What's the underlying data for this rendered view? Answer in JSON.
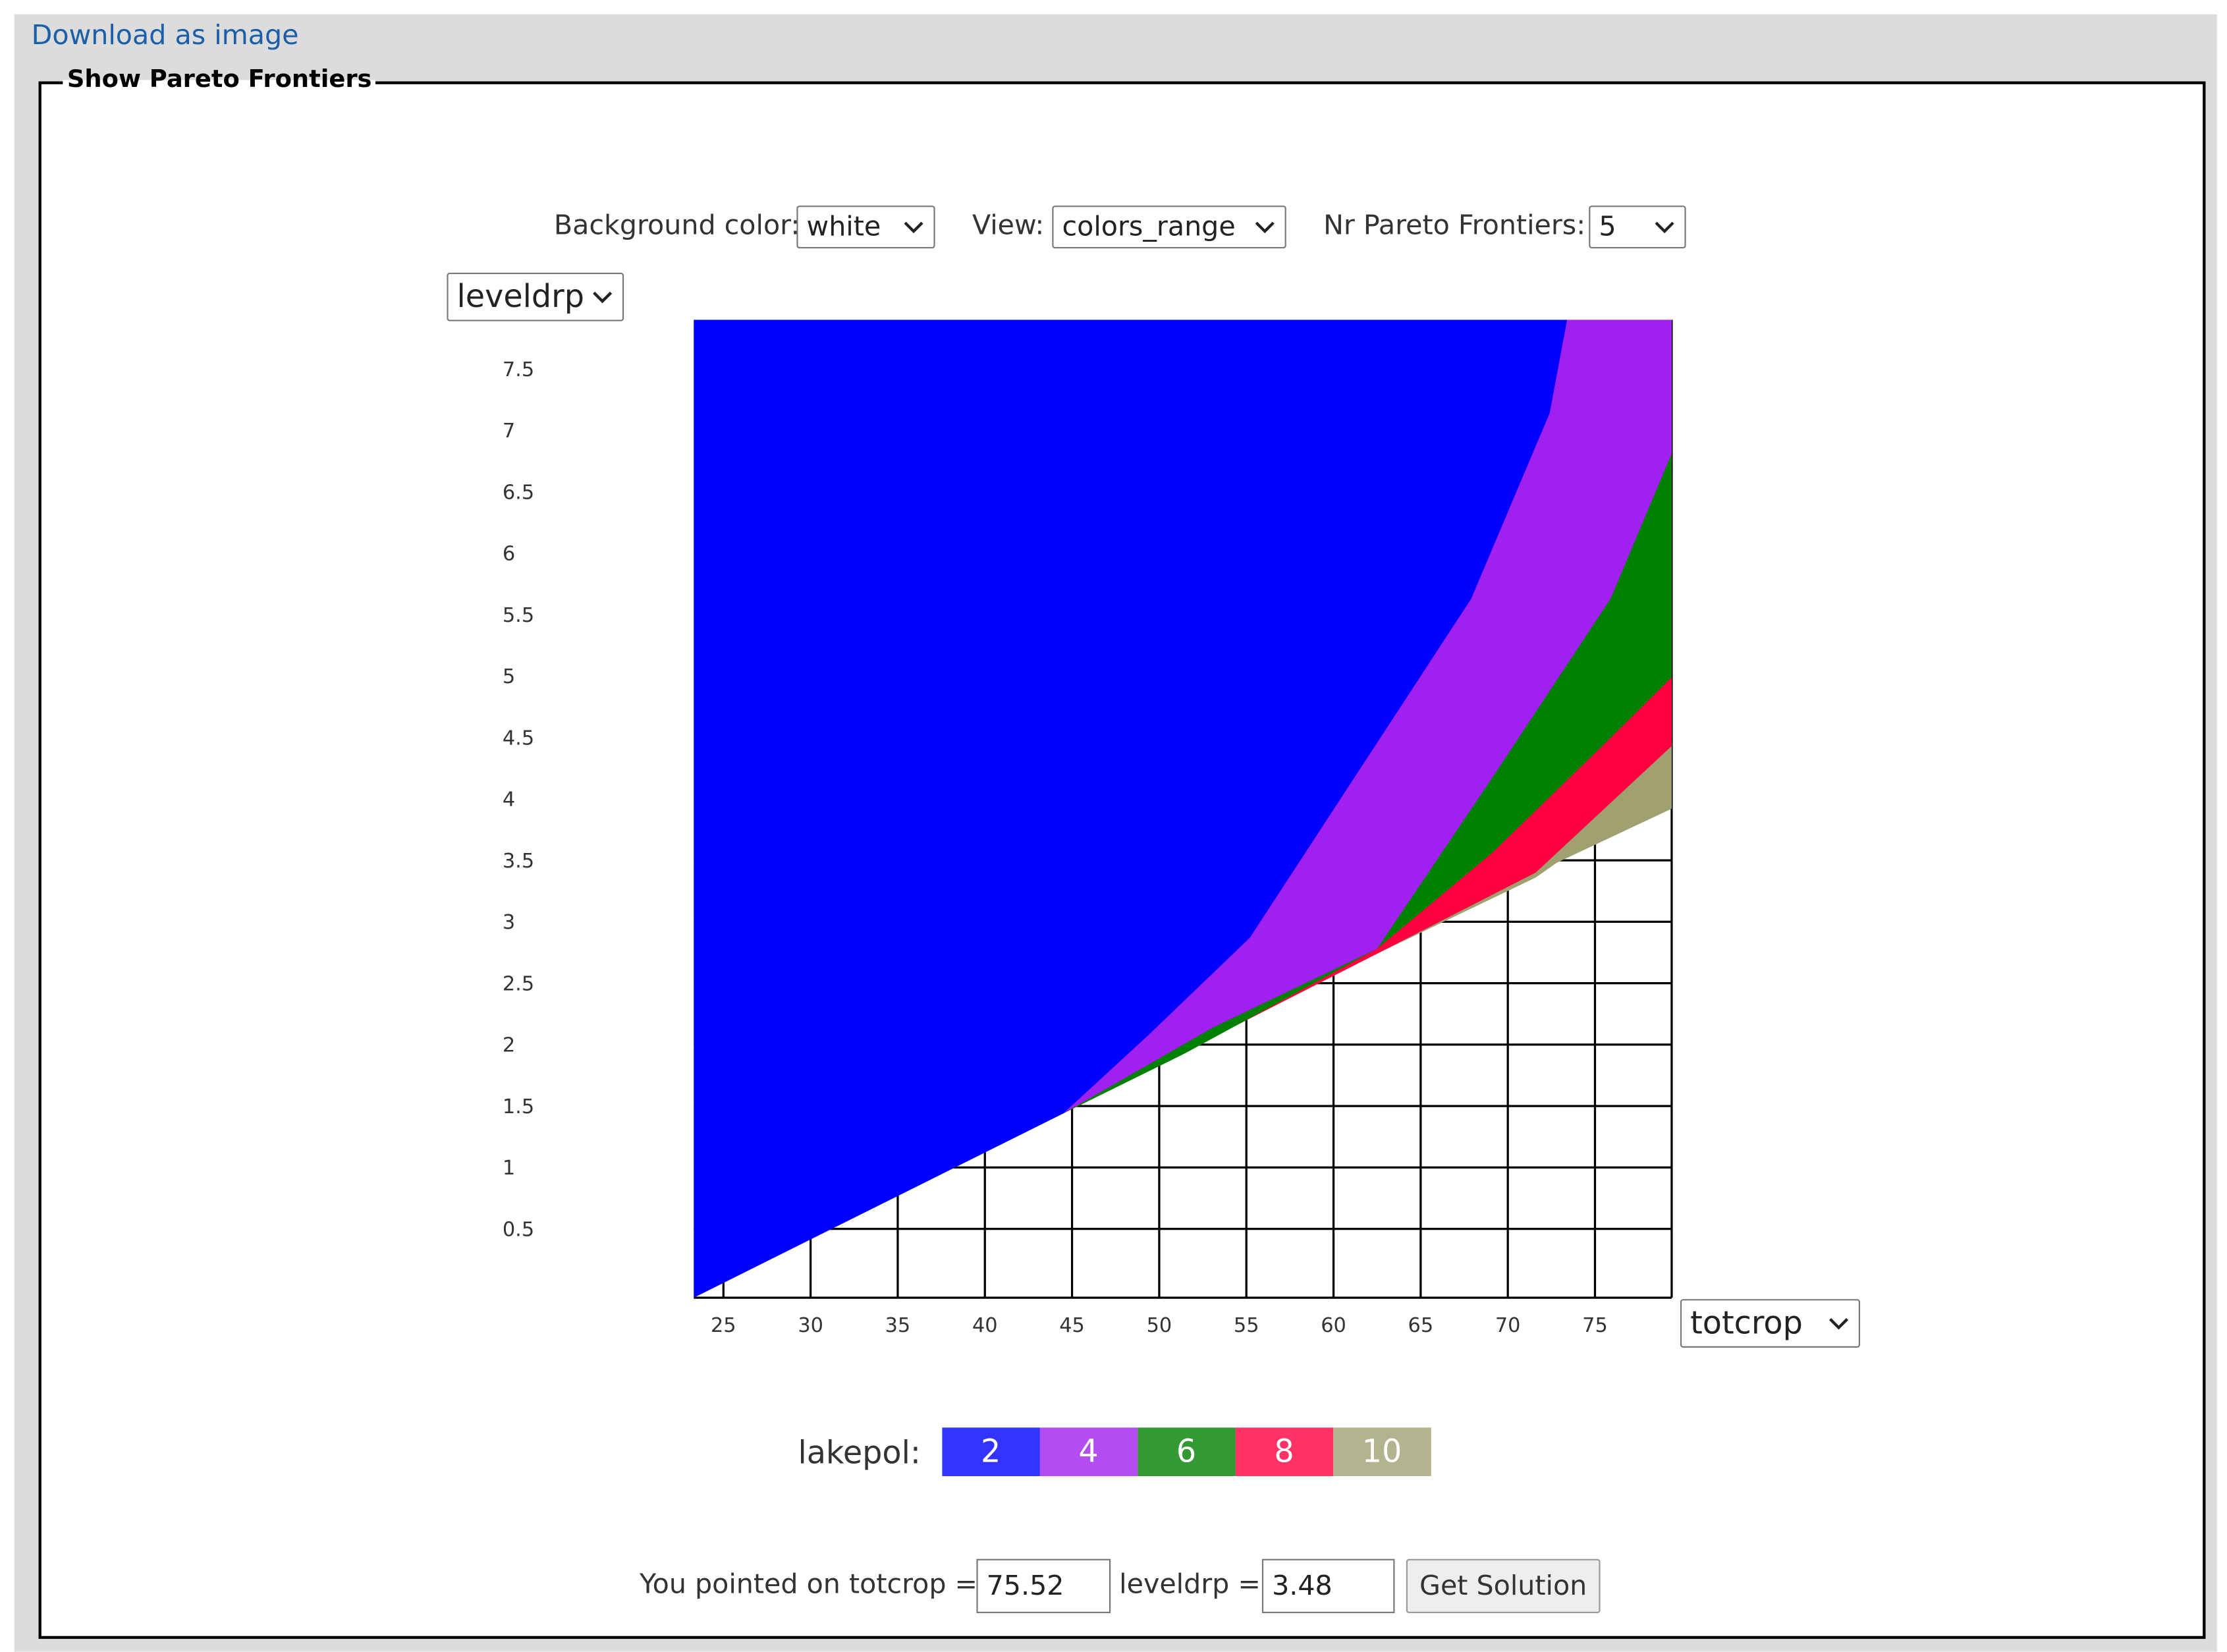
{
  "link": "Download as image",
  "panel_title": "Show Pareto Frontiers",
  "controls": {
    "background_label": "Background color:",
    "background_value": "white",
    "view_label": "View:",
    "view_value": "colors_range",
    "frontiers_label": "Nr Pareto Frontiers:",
    "frontiers_value": "5",
    "y_select": "leveldrp",
    "x_select": "totcrop"
  },
  "chart_data": {
    "type": "area",
    "xlim": [
      23.3,
      79.4
    ],
    "ylim": [
      -0.06,
      7.9
    ],
    "xticks": [
      25,
      30,
      35,
      40,
      45,
      50,
      55,
      60,
      65,
      70,
      75
    ],
    "yticks": [
      0.5,
      1,
      1.5,
      2,
      2.5,
      3,
      3.5,
      4,
      4.5,
      5,
      5.5,
      6,
      6.5,
      7,
      7.5
    ],
    "grid": true,
    "legend_title": "lakepol:",
    "series": [
      {
        "name": "2",
        "color": "#0000ff",
        "x": [
          23.3,
          44.5,
          49.4,
          55.2,
          67.9,
          72.4,
          73.4
        ],
        "values": [
          -0.06,
          1.44,
          2.08,
          2.87,
          5.63,
          7.14,
          7.9
        ]
      },
      {
        "name": "4",
        "color": "#a020f0",
        "x": [
          44.5,
          53.1,
          62.5,
          69.1,
          75.9,
          79.4
        ],
        "values": [
          1.44,
          2.14,
          2.78,
          4.17,
          5.63,
          6.81
        ]
      },
      {
        "name": "6",
        "color": "#008000",
        "x": [
          44.5,
          51.5,
          62.5,
          69.1,
          75.7,
          79.4
        ],
        "values": [
          1.44,
          1.93,
          2.78,
          3.56,
          4.47,
          4.99
        ]
      },
      {
        "name": "8",
        "color": "#ff0040",
        "x": [
          44.5,
          62.5,
          71.6,
          79.4
        ],
        "values": [
          1.44,
          2.74,
          3.4,
          4.43
        ]
      },
      {
        "name": "10",
        "color": "#a0a070",
        "x": [
          23.3,
          44.5,
          62.5,
          71.6,
          72.8,
          79.4
        ],
        "values": [
          -0.06,
          1.44,
          2.74,
          3.36,
          3.48,
          3.92
        ]
      }
    ]
  },
  "pointer": {
    "text1": "You pointed on totcrop =",
    "x_value": "75.52",
    "text2": "leveldrp =",
    "y_value": "3.48",
    "button": "Get Solution"
  }
}
